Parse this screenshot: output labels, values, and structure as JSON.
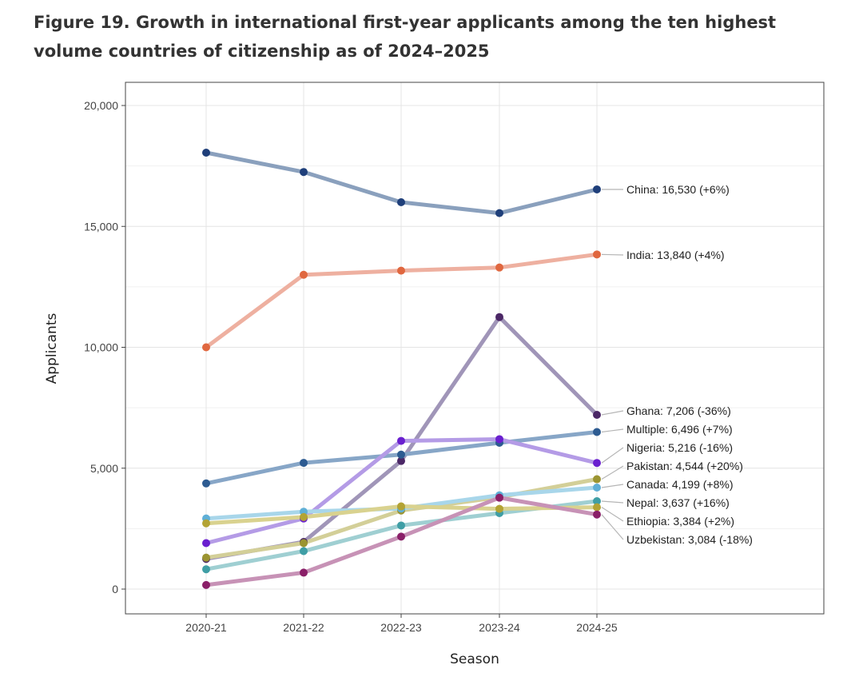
{
  "figure": {
    "title": "Figure 19. Growth in international first-year applicants among the ten highest volume countries of citizenship as of 2024–2025"
  },
  "chart_data": {
    "type": "line",
    "title": "Figure 19. Growth in international first-year applicants among the ten highest volume countries of citizenship as of 2024–2025",
    "xlabel": "Season",
    "ylabel": "Applicants",
    "categories": [
      "2020-21",
      "2021-22",
      "2022-23",
      "2023-24",
      "2024-25"
    ],
    "ylim": [
      -1000,
      21000
    ],
    "yticks": [
      0,
      5000,
      10000,
      15000,
      20000
    ],
    "ytick_labels": [
      "0",
      "5,000",
      "10,000",
      "15,000",
      "20,000"
    ],
    "grid": true,
    "legend": "direct labels at right end of lines",
    "series": [
      {
        "name": "China",
        "label": "China: 16,530 (+6%)",
        "values": [
          18050,
          17250,
          16000,
          15550,
          16530
        ],
        "color": "#1f3f7a",
        "lineColor": "#8aa0bd"
      },
      {
        "name": "India",
        "label": "India: 13,840 (+4%)",
        "values": [
          10000,
          13000,
          13170,
          13300,
          13840
        ],
        "color": "#e0673f",
        "lineColor": "#eeb0a0"
      },
      {
        "name": "Ghana",
        "label": "Ghana: 7,206 (-36%)",
        "values": [
          1250,
          1950,
          5300,
          11250,
          7206
        ],
        "color": "#4b2766",
        "lineColor": "#a095b8"
      },
      {
        "name": "Multiple",
        "label": "Multiple: 6,496 (+7%)",
        "values": [
          4370,
          5220,
          5560,
          6050,
          6496
        ],
        "color": "#2d5b91",
        "lineColor": "#87a6c7"
      },
      {
        "name": "Nigeria",
        "label": "Nigeria: 5,216 (-16%)",
        "values": [
          1900,
          2920,
          6130,
          6200,
          5216
        ],
        "color": "#6a1fcf",
        "lineColor": "#b49be6"
      },
      {
        "name": "Pakistan",
        "label": "Pakistan: 4,544 (+20%)",
        "values": [
          1300,
          1900,
          3250,
          3800,
          4544
        ],
        "color": "#9b9431",
        "lineColor": "#d3cf98"
      },
      {
        "name": "Canada",
        "label": "Canada: 4,199 (+8%)",
        "values": [
          2920,
          3200,
          3330,
          3880,
          4199
        ],
        "color": "#5fafd6",
        "lineColor": "#a8d6ea"
      },
      {
        "name": "Nepal",
        "label": "Nepal: 3,637 (+16%)",
        "values": [
          820,
          1570,
          2630,
          3140,
          3637
        ],
        "color": "#3f9ea5",
        "lineColor": "#9fcfd2"
      },
      {
        "name": "Ethiopia",
        "label": "Ethiopia: 3,384 (+2%)",
        "values": [
          2720,
          2980,
          3420,
          3320,
          3384
        ],
        "color": "#b3a334",
        "lineColor": "#d9d28f"
      },
      {
        "name": "Uzbekistan",
        "label": "Uzbekistan: 3,084 (-18%)",
        "values": [
          170,
          680,
          2170,
          3780,
          3084
        ],
        "color": "#8a1f68",
        "lineColor": "#c792b6"
      }
    ]
  }
}
